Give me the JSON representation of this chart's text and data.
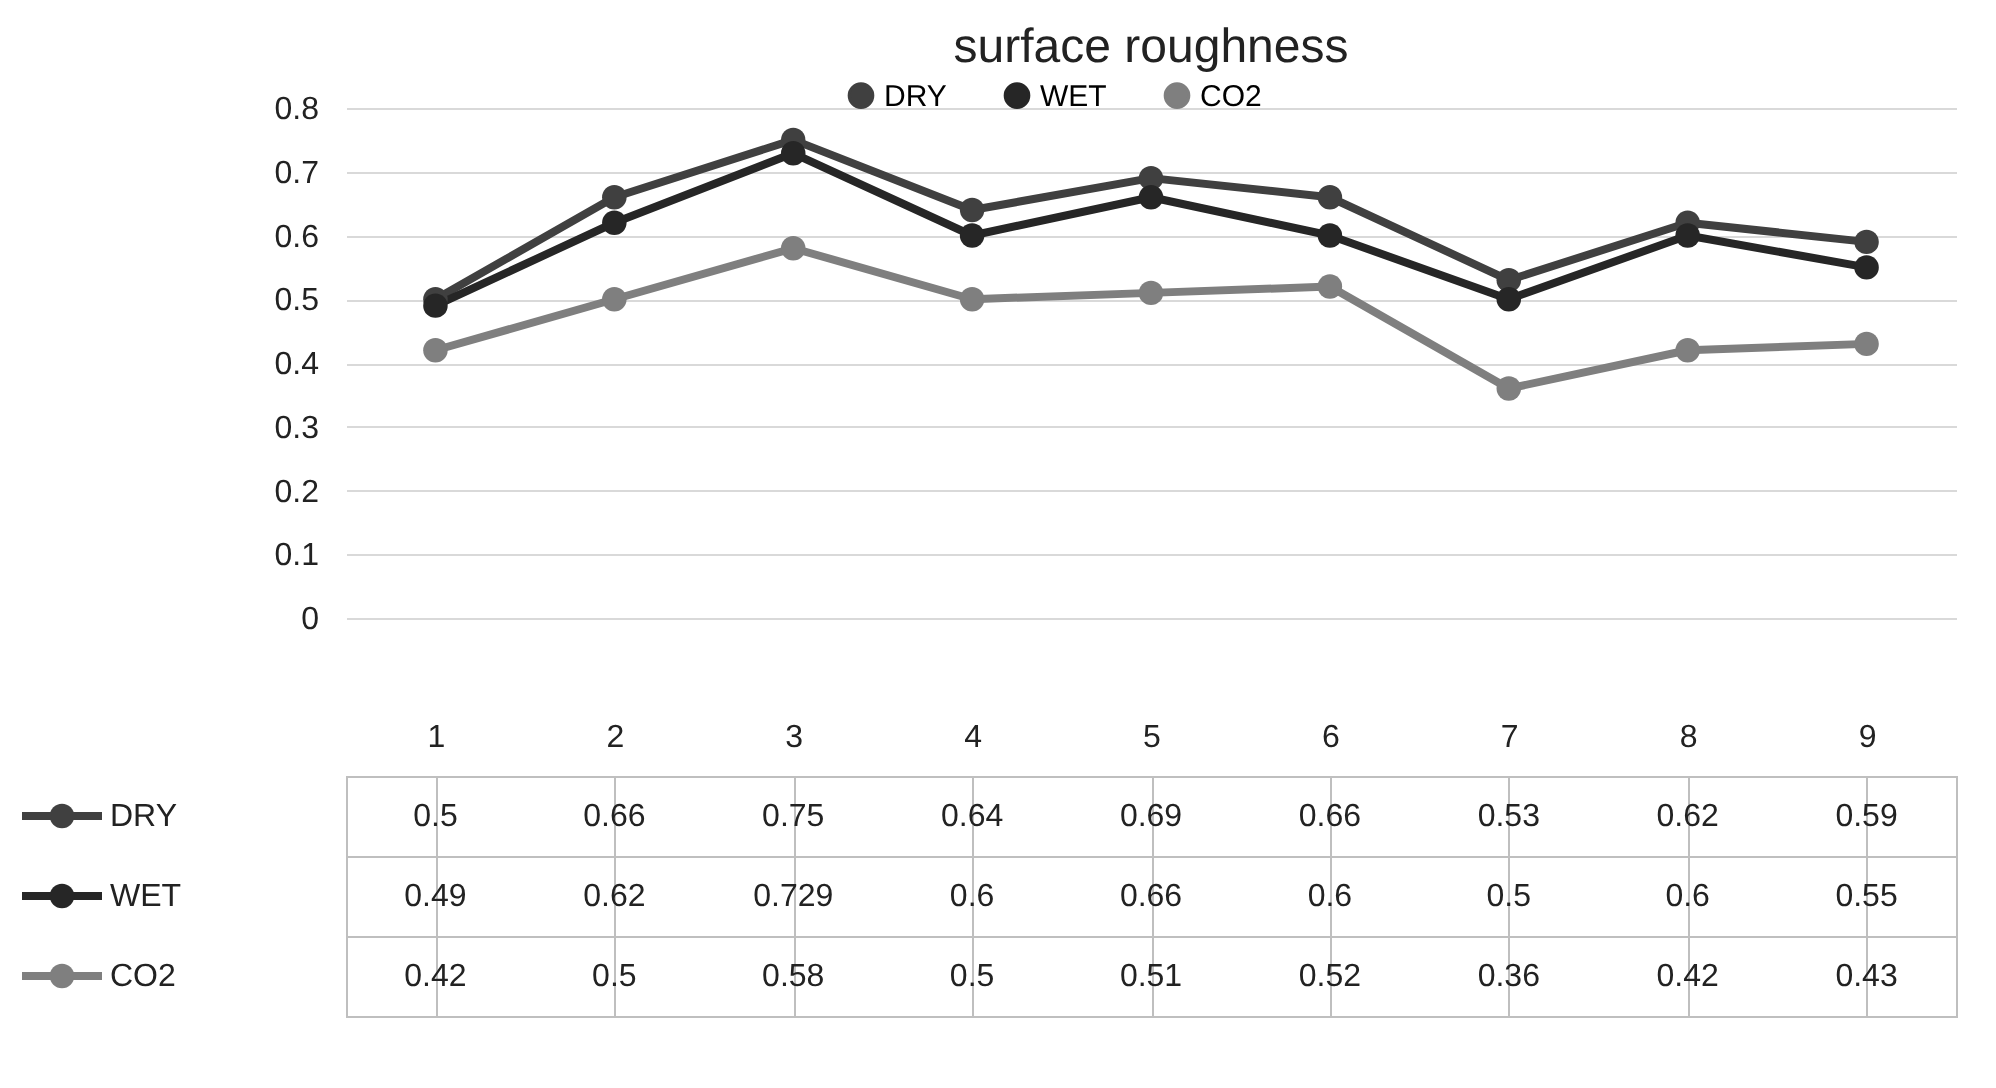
{
  "chart_data": {
    "type": "line",
    "title": "surface roughness",
    "categories": [
      "1",
      "2",
      "3",
      "4",
      "5",
      "6",
      "7",
      "8",
      "9"
    ],
    "series": [
      {
        "name": "DRY",
        "color": "#404040",
        "values": [
          0.5,
          0.66,
          0.75,
          0.64,
          0.69,
          0.66,
          0.53,
          0.62,
          0.59
        ]
      },
      {
        "name": "WET",
        "color": "#262626",
        "values": [
          0.49,
          0.62,
          0.729,
          0.6,
          0.66,
          0.6,
          0.5,
          0.6,
          0.55
        ]
      },
      {
        "name": "CO2",
        "color": "#7f7f7f",
        "values": [
          0.42,
          0.5,
          0.58,
          0.5,
          0.51,
          0.52,
          0.36,
          0.42,
          0.43
        ]
      }
    ],
    "ylim": [
      0,
      0.8
    ],
    "yticks": [
      0,
      0.1,
      0.2,
      0.3,
      0.4,
      0.5,
      0.6,
      0.7,
      0.8
    ],
    "grid": "y",
    "legend": "top",
    "marker": "circle",
    "line_style": "solid",
    "data_labels": true
  }
}
